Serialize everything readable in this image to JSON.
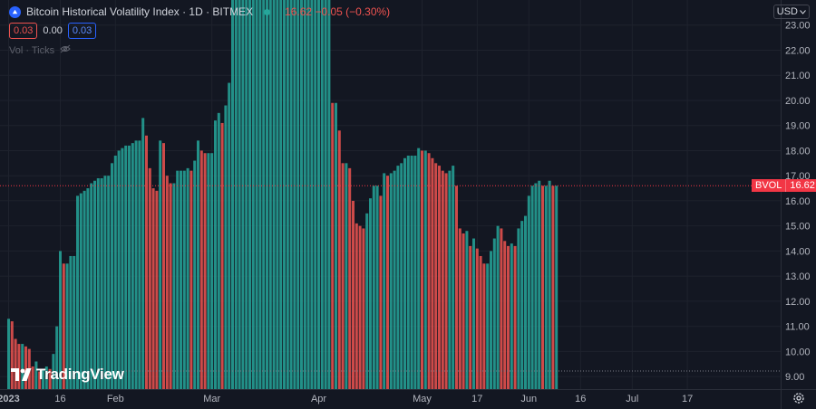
{
  "header": {
    "title": "Bitcoin Historical Volatility Index · 1D · BITMEX",
    "price_change": "16.62 −0.05 (−0.30%)"
  },
  "volume_legend": {
    "down_value": "0.03",
    "mid_value": "0.00",
    "up_value": "0.03",
    "label": "Vol · Ticks"
  },
  "currency": "USD",
  "last_price_tag": {
    "symbol": "BVOL",
    "value": "16.62"
  },
  "branding": "TradingView",
  "colors": {
    "up": "#26a69a",
    "down": "#ef5350",
    "background": "#131722",
    "grid": "#1e222d",
    "text": "#b2b5be"
  },
  "chart_data": {
    "type": "bar",
    "title": "Bitcoin Historical Volatility Index · 1D · BITMEX",
    "ylim": [
      8.5,
      24.0
    ],
    "y_ticks": [
      9.0,
      10.0,
      11.0,
      12.0,
      13.0,
      14.0,
      15.0,
      16.0,
      17.0,
      18.0,
      19.0,
      20.0,
      21.0,
      22.0,
      23.0
    ],
    "x_tick_labels": [
      "2023",
      "16",
      "Feb",
      "Mar",
      "Apr",
      "May",
      "17",
      "Jun",
      "16",
      "Jul",
      "17"
    ],
    "x_range": [
      "2023-01-01",
      "2023-07-27"
    ],
    "series": [
      {
        "start": "2023-01-01",
        "values": [
          11.3,
          11.2,
          10.5,
          10.3,
          10.3,
          10.2,
          10.1,
          9.4,
          9.6,
          9.2,
          9.3,
          9.4,
          9.3,
          9.9,
          11.0,
          14.0,
          13.5,
          13.5,
          13.8,
          13.8,
          16.2,
          16.3,
          16.4,
          16.5,
          16.7,
          16.8,
          16.9,
          16.9,
          17.0,
          17.0,
          17.5,
          17.8,
          18.0,
          18.1,
          18.2,
          18.2,
          18.3,
          18.4,
          18.4,
          19.3,
          18.6,
          17.3,
          16.5,
          16.4,
          18.4,
          18.3,
          17.0,
          16.7,
          16.7,
          17.2,
          17.2,
          17.2,
          17.3,
          17.2,
          17.6,
          18.4,
          18.0,
          17.9,
          17.9,
          17.9,
          19.2,
          19.5,
          19.1,
          19.8,
          20.7,
          24.5,
          24.5,
          24.5,
          24.5,
          24.5,
          24.5,
          24.5,
          24.5,
          24.5,
          24.5,
          24.5,
          24.5,
          24.5,
          24.5,
          24.5,
          24.5,
          24.5,
          24.5,
          24.5,
          24.5,
          24.5,
          24.5,
          24.5,
          24.5,
          24.5,
          24.5,
          24.5,
          24.5,
          24.5,
          19.9,
          19.9,
          18.8,
          17.5,
          17.5,
          17.3,
          16.0,
          15.1,
          15.0,
          14.9,
          15.5,
          16.1,
          16.6,
          16.6,
          16.2,
          17.1,
          17.0,
          17.1,
          17.2,
          17.4,
          17.5,
          17.7,
          17.8,
          17.8,
          17.8,
          18.1,
          18.0,
          18.0,
          17.9,
          17.7,
          17.5,
          17.4,
          17.2,
          17.1,
          17.2,
          17.4,
          16.6,
          14.9,
          14.7,
          14.8,
          14.2,
          14.5,
          14.1,
          13.8,
          13.5,
          13.5,
          14.0,
          14.5,
          15.0,
          14.9,
          14.4,
          14.2,
          14.3,
          14.2,
          14.9,
          15.2,
          15.4,
          16.2,
          16.6,
          16.7,
          16.8,
          16.6,
          16.6,
          16.8,
          16.6,
          16.6
        ]
      }
    ]
  }
}
